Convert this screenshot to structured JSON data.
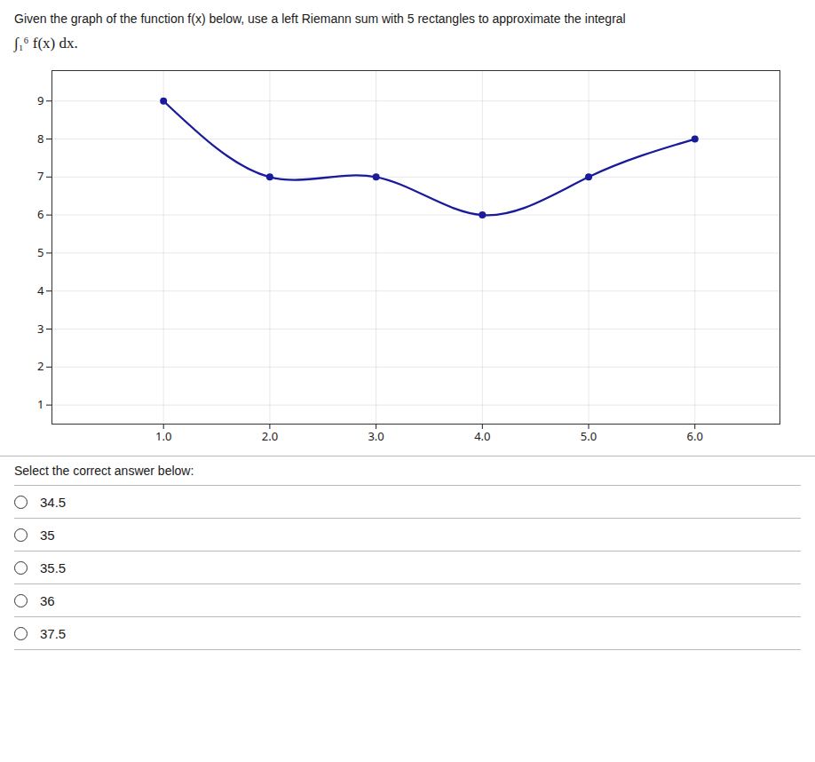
{
  "chart_data": {
    "type": "line",
    "title": "Given the graph of the function f(x) below, use a left Riemann sum with 5 rectangles to approximate the integral",
    "subtitle": "∫₁⁶ f(x) dx.",
    "annotations": [
      "Select the correct answer below:",
      "34.5",
      "35",
      "35.5",
      "36",
      "37.5"
    ],
    "x": [
      1,
      2,
      3,
      4,
      5,
      6
    ],
    "values": [
      9,
      7,
      7,
      6,
      7,
      8
    ],
    "color": "#1a1a9c",
    "marker": "circle",
    "line_style": "solid",
    "xlim": [
      -0.05,
      6.8
    ],
    "ylim": [
      0.5,
      9.8
    ],
    "xticks": [
      1,
      2,
      3,
      4,
      5,
      6
    ],
    "yticks": [
      1,
      2,
      3,
      4,
      5,
      6,
      7,
      8,
      9
    ],
    "grid": true
  }
}
